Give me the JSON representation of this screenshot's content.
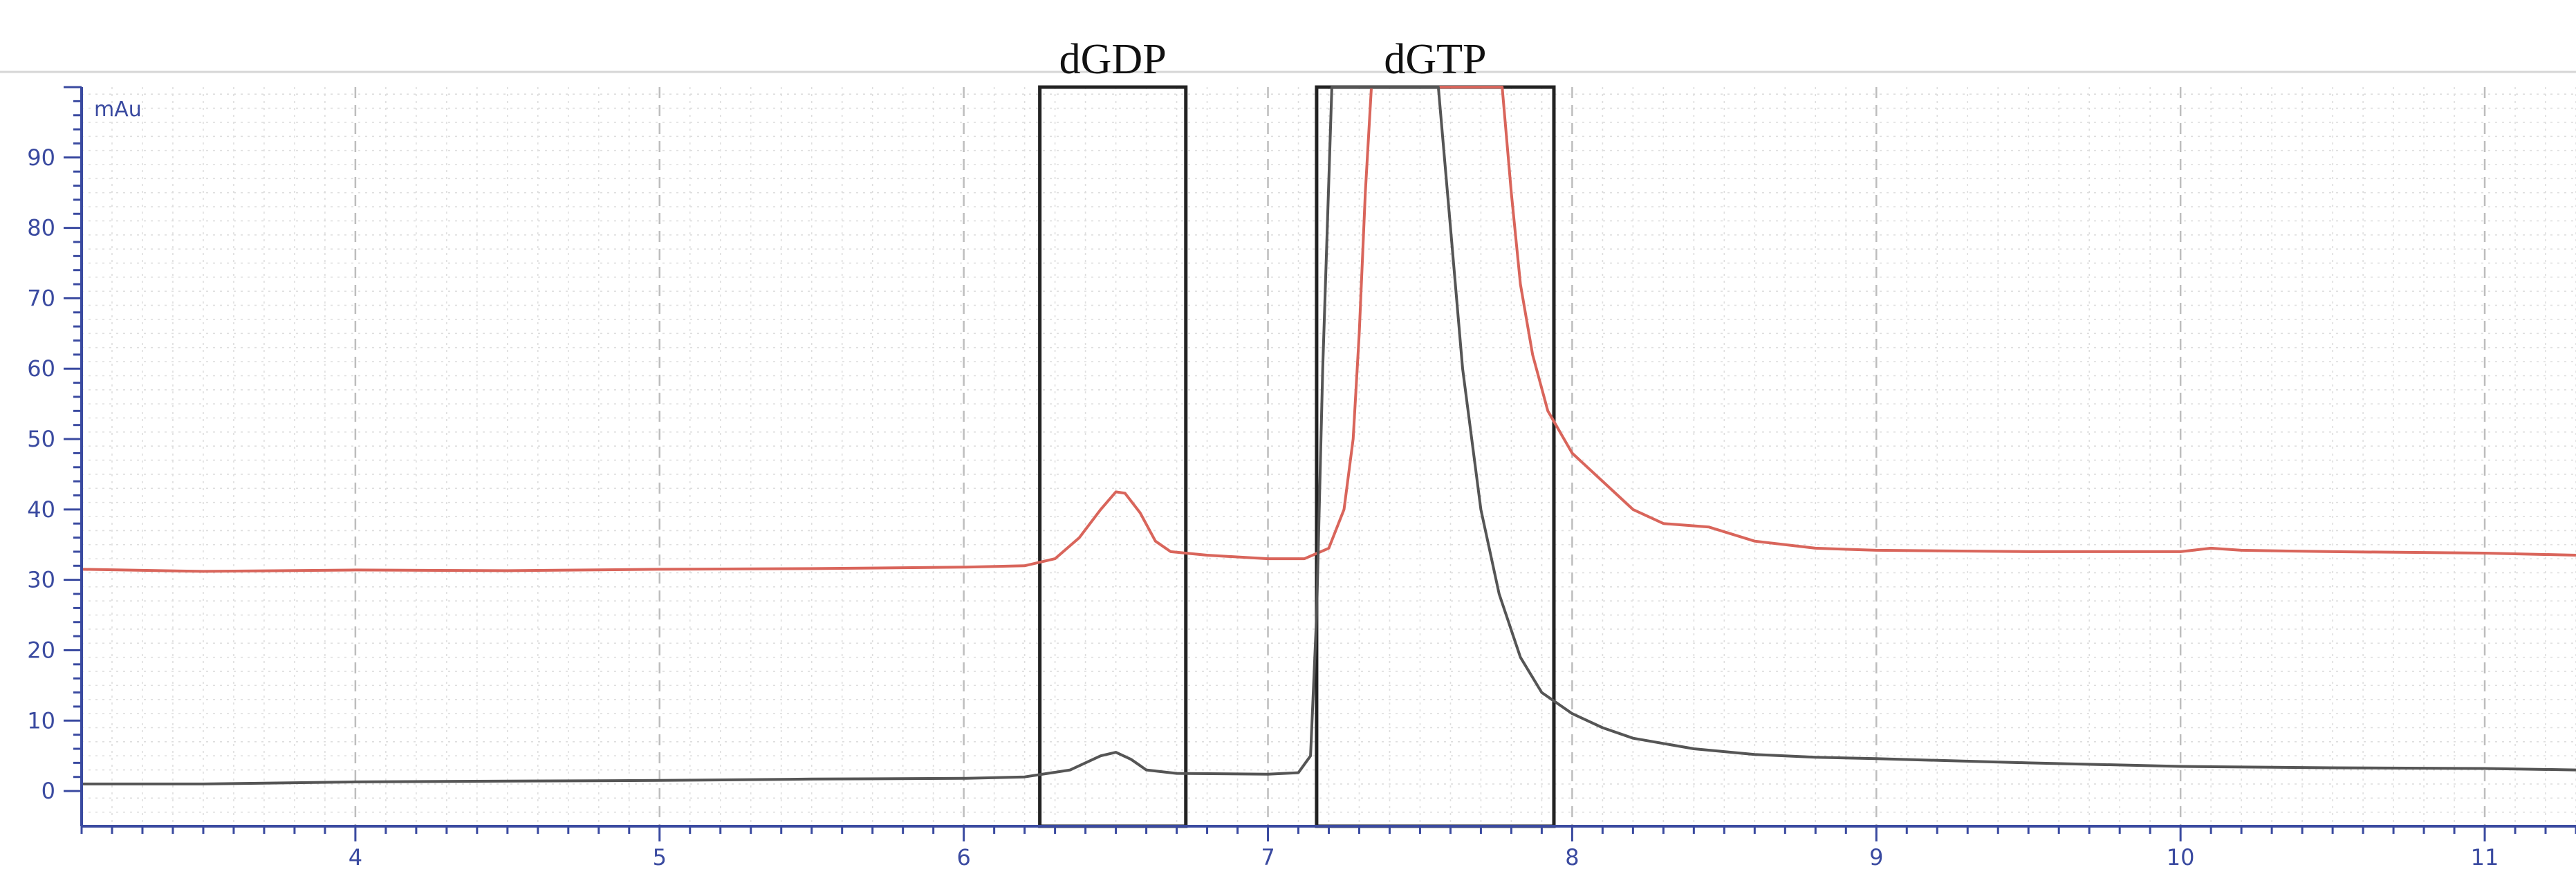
{
  "chart_data": {
    "type": "line",
    "title": "",
    "xlabel": "",
    "ylabel": "mAu",
    "xlim": [
      3.1,
      11.3
    ],
    "ylim": [
      -5,
      100
    ],
    "x_ticks": [
      4,
      5,
      6,
      7,
      8,
      9,
      10,
      11
    ],
    "y_ticks": [
      0,
      10,
      20,
      30,
      40,
      50,
      60,
      70,
      80,
      90
    ],
    "x_tick_labels": [
      "4",
      "5",
      "6",
      "7",
      "8",
      "9",
      "10",
      "11"
    ],
    "y_tick_labels": [
      "0",
      "10",
      "20",
      "30",
      "40",
      "50",
      "60",
      "70",
      "80",
      "90"
    ],
    "grid": true,
    "annotations": [
      {
        "label": "dGDP",
        "x_range": [
          6.25,
          6.73
        ],
        "y_range": [
          -5,
          100
        ]
      },
      {
        "label": "dGTP",
        "x_range": [
          7.16,
          7.94
        ],
        "y_range": [
          -5,
          100
        ]
      }
    ],
    "series": [
      {
        "color": "#d9655b",
        "points": [
          [
            3.1,
            31.5
          ],
          [
            3.5,
            31.2
          ],
          [
            4.0,
            31.4
          ],
          [
            4.5,
            31.3
          ],
          [
            5.0,
            31.5
          ],
          [
            5.5,
            31.6
          ],
          [
            6.0,
            31.8
          ],
          [
            6.2,
            32.0
          ],
          [
            6.3,
            33.0
          ],
          [
            6.38,
            36.0
          ],
          [
            6.45,
            40.0
          ],
          [
            6.5,
            42.5
          ],
          [
            6.53,
            42.3
          ],
          [
            6.58,
            39.5
          ],
          [
            6.63,
            35.5
          ],
          [
            6.68,
            34.0
          ],
          [
            6.8,
            33.5
          ],
          [
            7.0,
            33.0
          ],
          [
            7.12,
            33.0
          ],
          [
            7.2,
            34.5
          ],
          [
            7.25,
            40.0
          ],
          [
            7.28,
            50.0
          ],
          [
            7.3,
            65.0
          ],
          [
            7.32,
            85.0
          ],
          [
            7.34,
            100.0
          ],
          [
            7.77,
            100.0
          ],
          [
            7.8,
            85.0
          ],
          [
            7.83,
            72.0
          ],
          [
            7.87,
            62.0
          ],
          [
            7.92,
            54.0
          ],
          [
            8.0,
            48.0
          ],
          [
            8.1,
            44.0
          ],
          [
            8.2,
            40.0
          ],
          [
            8.3,
            38.0
          ],
          [
            8.45,
            37.5
          ],
          [
            8.6,
            35.5
          ],
          [
            8.8,
            34.5
          ],
          [
            9.0,
            34.2
          ],
          [
            9.5,
            34.0
          ],
          [
            10.0,
            34.0
          ],
          [
            10.1,
            34.5
          ],
          [
            10.2,
            34.2
          ],
          [
            10.5,
            34.0
          ],
          [
            11.0,
            33.8
          ],
          [
            11.3,
            33.5
          ]
        ]
      },
      {
        "color": "#555555",
        "points": [
          [
            3.1,
            1.0
          ],
          [
            3.5,
            1.0
          ],
          [
            4.0,
            1.3
          ],
          [
            4.5,
            1.4
          ],
          [
            5.0,
            1.5
          ],
          [
            5.5,
            1.7
          ],
          [
            6.0,
            1.8
          ],
          [
            6.2,
            2.0
          ],
          [
            6.35,
            3.0
          ],
          [
            6.45,
            5.0
          ],
          [
            6.5,
            5.5
          ],
          [
            6.55,
            4.5
          ],
          [
            6.6,
            3.0
          ],
          [
            6.7,
            2.5
          ],
          [
            7.0,
            2.4
          ],
          [
            7.1,
            2.6
          ],
          [
            7.14,
            5.0
          ],
          [
            7.16,
            25.0
          ],
          [
            7.18,
            60.0
          ],
          [
            7.21,
            100.0
          ],
          [
            7.56,
            100.0
          ],
          [
            7.6,
            80.0
          ],
          [
            7.64,
            60.0
          ],
          [
            7.7,
            40.0
          ],
          [
            7.76,
            28.0
          ],
          [
            7.83,
            19.0
          ],
          [
            7.9,
            14.0
          ],
          [
            8.0,
            11.0
          ],
          [
            8.1,
            9.0
          ],
          [
            8.2,
            7.5
          ],
          [
            8.4,
            6.0
          ],
          [
            8.6,
            5.2
          ],
          [
            8.8,
            4.8
          ],
          [
            9.0,
            4.6
          ],
          [
            9.5,
            4.0
          ],
          [
            10.0,
            3.5
          ],
          [
            10.5,
            3.3
          ],
          [
            11.0,
            3.2
          ],
          [
            11.3,
            3.0
          ]
        ]
      }
    ]
  }
}
